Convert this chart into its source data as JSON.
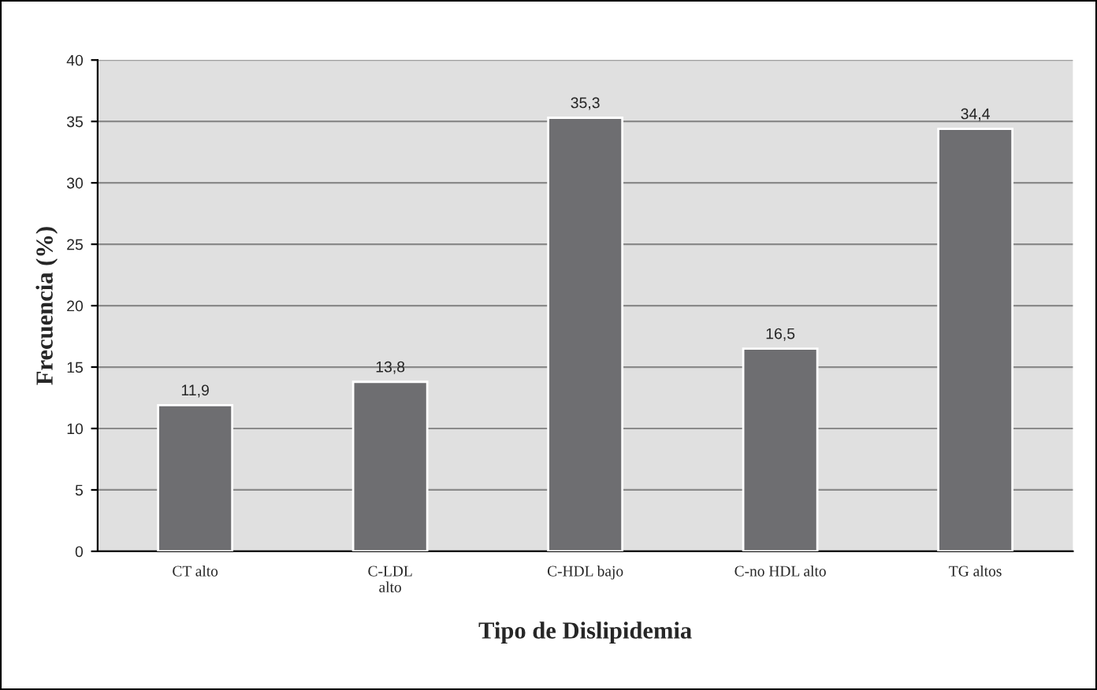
{
  "chart_data": {
    "type": "bar",
    "xlabel": "Tipo de Dislipidemia",
    "ylabel": "Frecuencia (%)",
    "categories": [
      "CT alto",
      "C-LDL\nalto",
      "C-HDL bajo",
      "C-no HDL alto",
      "TG altos"
    ],
    "values": [
      11.9,
      13.8,
      35.3,
      16.5,
      34.4
    ],
    "value_labels": [
      "11,9",
      "13,8",
      "35,3",
      "16,5",
      "34,4"
    ],
    "color": "#6e6e71",
    "ylim": [
      0,
      40
    ],
    "yticks": [
      0,
      5,
      10,
      15,
      20,
      25,
      30,
      35,
      40
    ],
    "grid": "y",
    "legend": false
  }
}
